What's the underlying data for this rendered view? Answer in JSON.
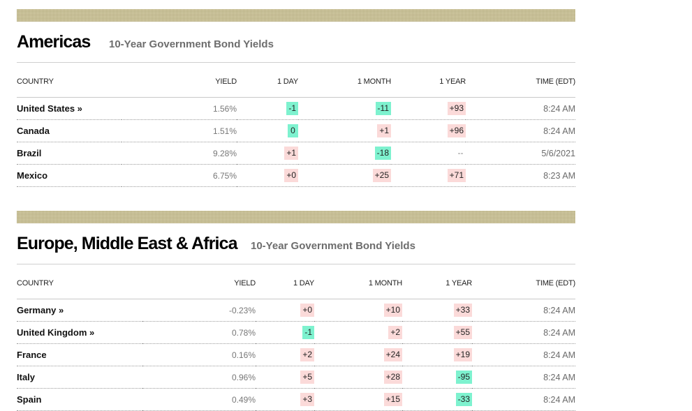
{
  "sections": [
    {
      "title": "Americas",
      "subtitle": "10-Year Government Bond Yields",
      "columns": [
        "COUNTRY",
        "YIELD",
        "1 DAY",
        "1 MONTH",
        "1 YEAR",
        "TIME (EDT)"
      ],
      "rows": [
        {
          "country": "United States »",
          "yield": "1.56%",
          "day": "-1",
          "day_dir": "neg",
          "month": "-11",
          "month_dir": "neg",
          "year": "+93",
          "year_dir": "pos",
          "time": "8:24 AM"
        },
        {
          "country": "Canada",
          "yield": "1.51%",
          "day": "0",
          "day_dir": "zero",
          "month": "+1",
          "month_dir": "pos",
          "year": "+96",
          "year_dir": "pos",
          "time": "8:24 AM"
        },
        {
          "country": "Brazil",
          "yield": "9.28%",
          "day": "+1",
          "day_dir": "pos",
          "month": "-18",
          "month_dir": "neg",
          "year": "--",
          "year_dir": "none",
          "time": "5/6/2021"
        },
        {
          "country": "Mexico",
          "yield": "6.75%",
          "day": "+0",
          "day_dir": "pos",
          "month": "+25",
          "month_dir": "pos",
          "year": "+71",
          "year_dir": "pos",
          "time": "8:23 AM"
        }
      ]
    },
    {
      "title": "Europe, Middle East & Africa",
      "subtitle": "10-Year Government Bond Yields",
      "columns": [
        "COUNTRY",
        "YIELD",
        "1 DAY",
        "1 MONTH",
        "1 YEAR",
        "TIME (EDT)"
      ],
      "rows": [
        {
          "country": "Germany »",
          "yield": "-0.23%",
          "day": "+0",
          "day_dir": "pos",
          "month": "+10",
          "month_dir": "pos",
          "year": "+33",
          "year_dir": "pos",
          "time": "8:24 AM"
        },
        {
          "country": "United Kingdom »",
          "yield": "0.78%",
          "day": "-1",
          "day_dir": "neg",
          "month": "+2",
          "month_dir": "pos",
          "year": "+55",
          "year_dir": "pos",
          "time": "8:24 AM"
        },
        {
          "country": "France",
          "yield": "0.16%",
          "day": "+2",
          "day_dir": "pos",
          "month": "+24",
          "month_dir": "pos",
          "year": "+19",
          "year_dir": "pos",
          "time": "8:24 AM"
        },
        {
          "country": "Italy",
          "yield": "0.96%",
          "day": "+5",
          "day_dir": "pos",
          "month": "+28",
          "month_dir": "pos",
          "year": "-95",
          "year_dir": "neg",
          "time": "8:24 AM"
        },
        {
          "country": "Spain",
          "yield": "0.49%",
          "day": "+3",
          "day_dir": "pos",
          "month": "+15",
          "month_dir": "pos",
          "year": "-33",
          "year_dir": "neg",
          "time": "8:24 AM"
        }
      ]
    }
  ],
  "colors": {
    "positive": "#fbdad9",
    "negative": "#7ef2cf",
    "band": "#ddd6b2",
    "subtitle": "#6d6d6d"
  }
}
